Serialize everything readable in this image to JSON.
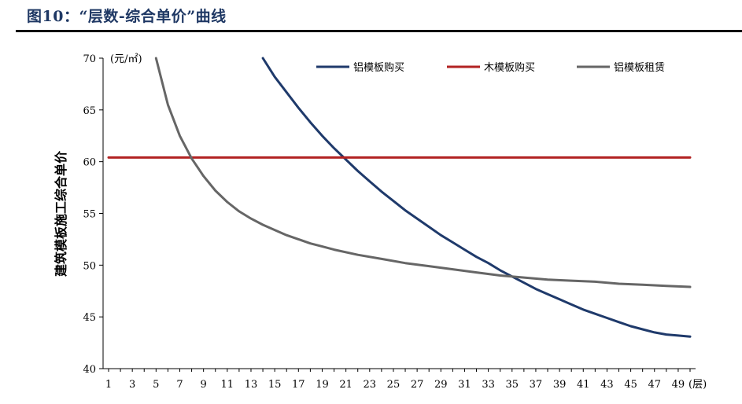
{
  "figure": {
    "title": "图10：“层数-综合单价”曲线"
  },
  "chart_data": {
    "type": "line",
    "ylabel": "建筑模板施工综合单价",
    "y_unit": "(元/㎡)",
    "x_unit": "(层)",
    "ylim": [
      40,
      70
    ],
    "xlim": [
      1,
      50
    ],
    "y_ticks": [
      40,
      45,
      50,
      55,
      60,
      65,
      70
    ],
    "x_ticks": [
      1,
      3,
      5,
      7,
      9,
      11,
      13,
      15,
      17,
      19,
      21,
      23,
      25,
      27,
      29,
      31,
      33,
      35,
      37,
      39,
      41,
      43,
      45,
      47,
      49
    ],
    "grid": false,
    "legend_position": "top",
    "series": [
      {
        "name": "铝模板购买",
        "color": "#1f3a6b",
        "x": [
          14,
          15,
          16,
          17,
          18,
          19,
          20,
          21,
          22,
          23,
          24,
          25,
          26,
          27,
          28,
          29,
          30,
          31,
          32,
          33,
          34,
          35,
          36,
          37,
          38,
          39,
          40,
          41,
          42,
          43,
          44,
          45,
          46,
          47,
          48,
          49,
          50
        ],
        "values": [
          70.0,
          68.2,
          66.7,
          65.2,
          63.8,
          62.5,
          61.3,
          60.2,
          59.1,
          58.1,
          57.1,
          56.2,
          55.3,
          54.5,
          53.7,
          52.9,
          52.2,
          51.5,
          50.8,
          50.2,
          49.5,
          48.9,
          48.3,
          47.7,
          47.2,
          46.7,
          46.2,
          45.7,
          45.3,
          44.9,
          44.5,
          44.1,
          43.8,
          43.5,
          43.3,
          43.2,
          43.1
        ]
      },
      {
        "name": "木模板购买",
        "color": "#b22222",
        "x": [
          1,
          50
        ],
        "values": [
          60.4,
          60.4
        ]
      },
      {
        "name": "铝模板租赁",
        "color": "#666666",
        "x": [
          5,
          6,
          7,
          8,
          9,
          10,
          11,
          12,
          13,
          14,
          15,
          16,
          17,
          18,
          19,
          20,
          22,
          24,
          26,
          28,
          30,
          32,
          34,
          36,
          38,
          40,
          42,
          44,
          46,
          48,
          50
        ],
        "values": [
          70.0,
          65.5,
          62.5,
          60.3,
          58.6,
          57.2,
          56.1,
          55.2,
          54.5,
          53.9,
          53.4,
          52.9,
          52.5,
          52.1,
          51.8,
          51.5,
          51.0,
          50.6,
          50.2,
          49.9,
          49.6,
          49.3,
          49.0,
          48.8,
          48.6,
          48.5,
          48.4,
          48.2,
          48.1,
          48.0,
          47.9
        ]
      }
    ]
  }
}
